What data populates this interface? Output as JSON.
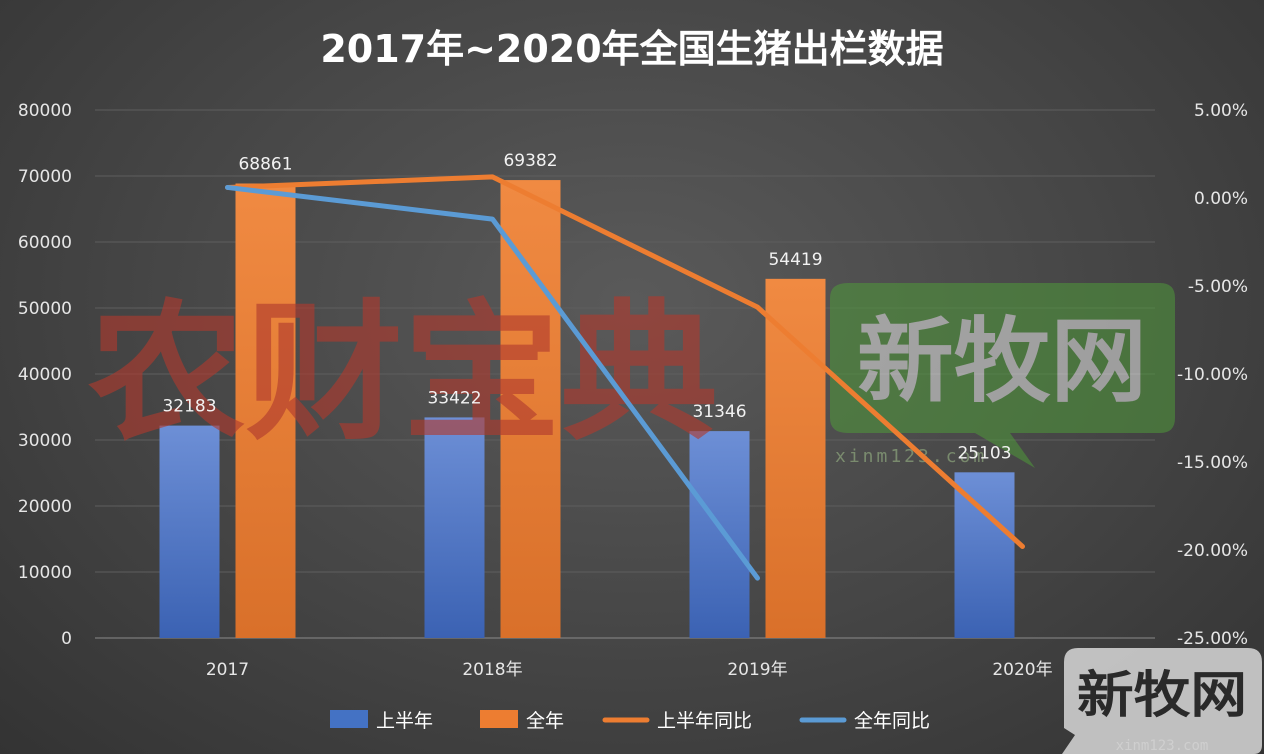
{
  "chart_data": {
    "type": "bar",
    "title": "2017年~2020年全国生猪出栏数据",
    "categories": [
      "2017",
      "2018年",
      "2019年",
      "2020年"
    ],
    "y_left": {
      "min": 0,
      "max": 80000,
      "step": 10000,
      "ticks": [
        "0",
        "10000",
        "20000",
        "30000",
        "40000",
        "50000",
        "60000",
        "70000",
        "80000"
      ]
    },
    "y_right": {
      "min": -25,
      "max": 5,
      "step": 5,
      "ticks": [
        "-25.00%",
        "-20.00%",
        "-15.00%",
        "-10.00%",
        "-5.00%",
        "0.00%",
        "5.00%"
      ]
    },
    "series": [
      {
        "name": "上半年",
        "kind": "bar",
        "axis": "left",
        "color": "#4472c4",
        "values": [
          32183,
          33422,
          31346,
          25103
        ],
        "labels": [
          "32183",
          "33422",
          "31346",
          "25103"
        ]
      },
      {
        "name": "全年",
        "kind": "bar",
        "axis": "left",
        "color": "#ed7d31",
        "values": [
          68861,
          69382,
          54419,
          null
        ],
        "labels": [
          "68861",
          "69382",
          "54419",
          ""
        ]
      },
      {
        "name": "上半年同比",
        "kind": "line",
        "axis": "right",
        "color": "#ed7d31",
        "values": [
          0.6,
          1.2,
          -6.2,
          -19.8
        ]
      },
      {
        "name": "全年同比",
        "kind": "line",
        "axis": "right",
        "color": "#5b9bd5",
        "values": [
          0.6,
          -1.2,
          -21.6,
          null
        ]
      }
    ],
    "legend_position": "bottom"
  },
  "watermarks": {
    "main": "农财宝典",
    "brand": "新牧网",
    "brand_url": "xinm123.com",
    "corner": "新牧网",
    "corner_url": "xinm123.com"
  }
}
